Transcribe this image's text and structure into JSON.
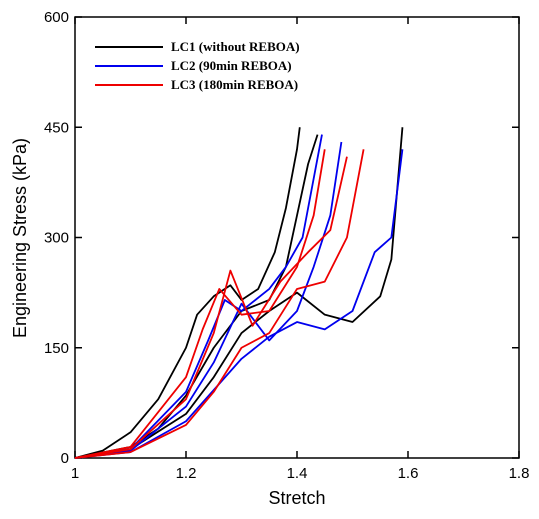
{
  "chart_data": {
    "type": "line",
    "xlabel": "Stretch",
    "ylabel": "Engineering Stress (kPa)",
    "xlim": [
      1,
      1.8
    ],
    "xticks": [
      1,
      1.2,
      1.4,
      1.6,
      1.8
    ],
    "ylim": [
      0,
      600
    ],
    "yticks": [
      0,
      150,
      300,
      450,
      600
    ],
    "legend": "upper left",
    "series": [
      {
        "name": "LC1 (without REBOA)",
        "color": "#000000",
        "curves": [
          {
            "x": [
              1,
              1.05,
              1.1,
              1.15,
              1.2,
              1.22,
              1.25,
              1.28,
              1.3,
              1.33,
              1.36,
              1.38,
              1.4,
              1.405
            ],
            "values": [
              0,
              10,
              35,
              80,
              150,
              195,
              220,
              235,
              215,
              230,
              280,
              340,
              420,
              450
            ]
          },
          {
            "x": [
              1,
              1.1,
              1.15,
              1.2,
              1.25,
              1.3,
              1.35,
              1.38,
              1.4,
              1.42,
              1.437
            ],
            "values": [
              0,
              15,
              40,
              85,
              150,
              200,
              215,
              260,
              330,
              400,
              440
            ]
          },
          {
            "x": [
              1,
              1.1,
              1.2,
              1.25,
              1.3,
              1.35,
              1.4,
              1.45,
              1.5,
              1.55,
              1.57,
              1.58,
              1.59
            ],
            "values": [
              0,
              12,
              60,
              110,
              170,
              200,
              225,
              195,
              185,
              220,
              270,
              360,
              450
            ]
          }
        ]
      },
      {
        "name": "LC2 (90min REBOA)",
        "color": "#0000ee",
        "curves": [
          {
            "x": [
              1,
              1.1,
              1.2,
              1.24,
              1.27,
              1.3,
              1.35,
              1.38,
              1.41,
              1.43,
              1.445
            ],
            "values": [
              0,
              12,
              90,
              160,
              215,
              200,
              230,
              260,
              300,
              380,
              440
            ]
          },
          {
            "x": [
              1,
              1.1,
              1.2,
              1.25,
              1.3,
              1.35,
              1.4,
              1.43,
              1.46,
              1.48
            ],
            "values": [
              0,
              10,
              70,
              130,
              210,
              160,
              200,
              260,
              330,
              430
            ]
          },
          {
            "x": [
              1,
              1.1,
              1.2,
              1.3,
              1.35,
              1.4,
              1.45,
              1.5,
              1.54,
              1.57,
              1.59
            ],
            "values": [
              0,
              8,
              50,
              135,
              165,
              185,
              175,
              200,
              280,
              300,
              420
            ]
          }
        ]
      },
      {
        "name": "LC3 (180min REBOA)",
        "color": "#ee0000",
        "curves": [
          {
            "x": [
              1,
              1.1,
              1.2,
              1.23,
              1.26,
              1.3,
              1.35,
              1.4,
              1.43,
              1.45
            ],
            "values": [
              0,
              15,
              110,
              175,
              230,
              195,
              200,
              260,
              330,
              420
            ]
          },
          {
            "x": [
              1,
              1.1,
              1.2,
              1.25,
              1.28,
              1.32,
              1.37,
              1.42,
              1.46,
              1.49
            ],
            "values": [
              0,
              12,
              80,
              170,
              255,
              180,
              240,
              280,
              310,
              410
            ]
          },
          {
            "x": [
              1,
              1.1,
              1.2,
              1.25,
              1.3,
              1.35,
              1.4,
              1.45,
              1.49,
              1.52
            ],
            "values": [
              0,
              8,
              45,
              90,
              150,
              170,
              230,
              240,
              300,
              420
            ]
          }
        ]
      }
    ]
  }
}
